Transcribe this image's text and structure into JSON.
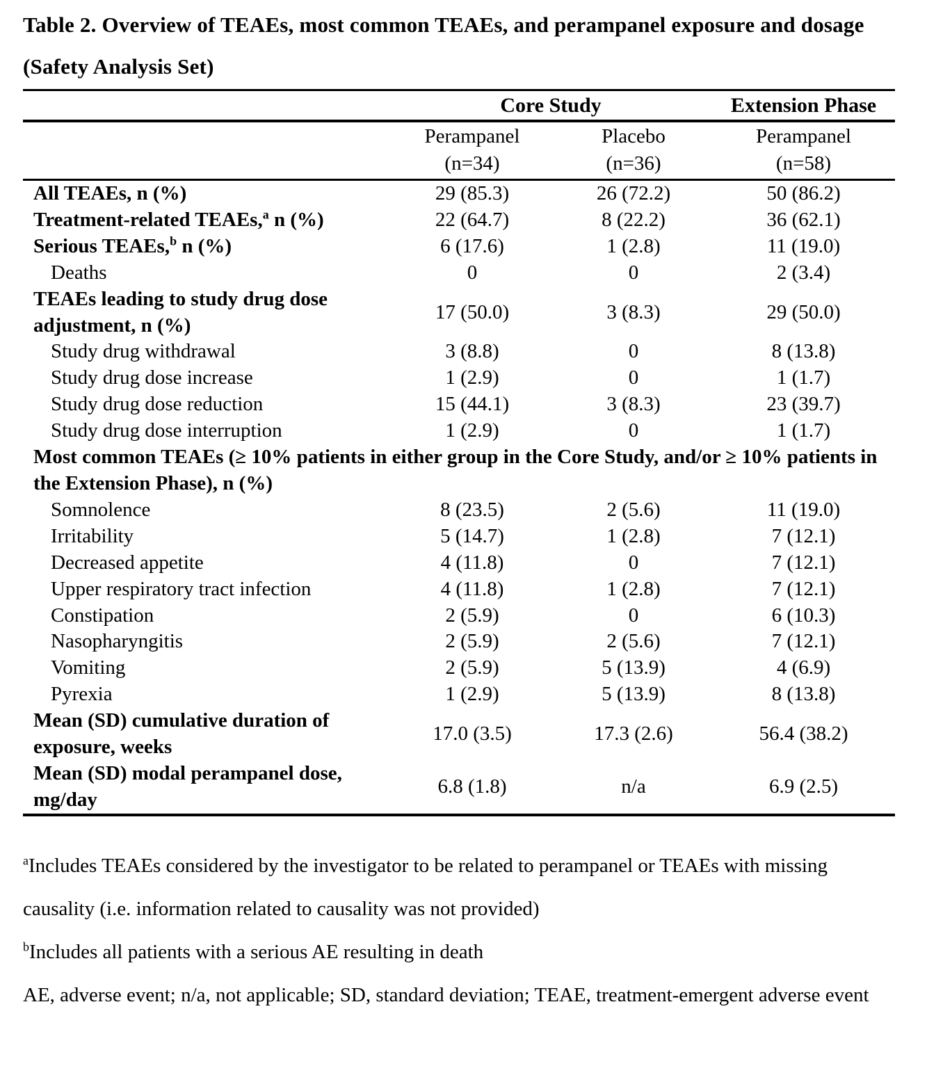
{
  "title": "Table 2. Overview of TEAEs, most common TEAEs, and perampanel exposure and dosage (Safety Analysis Set)",
  "table": {
    "group_headers": {
      "core": "Core Study",
      "extension": "Extension Phase"
    },
    "column_headers": [
      {
        "name": "Perampanel",
        "n": "(n=34)"
      },
      {
        "name": "Placebo",
        "n": "(n=36)"
      },
      {
        "name": "Perampanel",
        "n": "(n=58)"
      }
    ],
    "rows": [
      {
        "label": "All TEAEs, n (%)",
        "values": [
          "29 (85.3)",
          "26 (72.2)",
          "50 (86.2)"
        ]
      },
      {
        "label": "Treatment-related TEAEs,",
        "sup": "a",
        "label_rest": " n (%)",
        "values": [
          "22 (64.7)",
          "8 (22.2)",
          "36 (62.1)"
        ]
      },
      {
        "label": "Serious TEAEs,",
        "sup": "b",
        "label_rest": " n (%)",
        "values": [
          "6 (17.6)",
          "1 (2.8)",
          "11 (19.0)"
        ]
      },
      {
        "label": "Deaths",
        "values": [
          "0",
          "0",
          "2 (3.4)"
        ]
      },
      {
        "label": "TEAEs leading to study drug dose adjustment, n (%)",
        "values": [
          "17 (50.0)",
          "3 (8.3)",
          "29 (50.0)"
        ]
      },
      {
        "label": "Study drug withdrawal",
        "values": [
          "3 (8.8)",
          "0",
          "8 (13.8)"
        ]
      },
      {
        "label": "Study drug dose increase",
        "values": [
          "1 (2.9)",
          "0",
          "1 (1.7)"
        ]
      },
      {
        "label": "Study drug dose reduction",
        "values": [
          "15 (44.1)",
          "3 (8.3)",
          "23 (39.7)"
        ]
      },
      {
        "label": "Study drug dose interruption",
        "values": [
          "1 (2.9)",
          "0",
          "1 (1.7)"
        ]
      },
      {
        "heading": "Most common TEAEs (≥ 10% patients in either group in the Core Study, and/or ≥ 10% patients in the Extension Phase), n (%)"
      },
      {
        "label": "Somnolence",
        "values": [
          "8 (23.5)",
          "2 (5.6)",
          "11 (19.0)"
        ]
      },
      {
        "label": "Irritability",
        "values": [
          "5 (14.7)",
          "1 (2.8)",
          "7 (12.1)"
        ]
      },
      {
        "label": "Decreased appetite",
        "values": [
          "4 (11.8)",
          "0",
          "7 (12.1)"
        ]
      },
      {
        "label": "Upper respiratory tract infection",
        "values": [
          "4 (11.8)",
          "1 (2.8)",
          "7 (12.1)"
        ]
      },
      {
        "label": "Constipation",
        "values": [
          "2 (5.9)",
          "0",
          "6 (10.3)"
        ]
      },
      {
        "label": "Nasopharyngitis",
        "values": [
          "2 (5.9)",
          "2 (5.6)",
          "7 (12.1)"
        ]
      },
      {
        "label": "Vomiting",
        "values": [
          "2 (5.9)",
          "5 (13.9)",
          "4 (6.9)"
        ]
      },
      {
        "label": "Pyrexia",
        "values": [
          "1 (2.9)",
          "5 (13.9)",
          "8 (13.8)"
        ]
      },
      {
        "label": "Mean (SD) cumulative duration of exposure, weeks",
        "values": [
          "17.0 (3.5)",
          "17.3 (2.6)",
          "56.4 (38.2)"
        ]
      },
      {
        "label": "Mean (SD) modal perampanel dose, mg/day",
        "values": [
          "6.8 (1.8)",
          "n/a",
          "6.9 (2.5)"
        ]
      }
    ]
  },
  "footnotes": {
    "a_marker": "a",
    "a_text": "Includes TEAEs considered by the investigator to be related to perampanel or TEAEs with missing causality (i.e. information related to causality was not provided)",
    "b_marker": "b",
    "b_text": "Includes all patients with a serious AE resulting in death",
    "abbreviations": "AE, adverse event; n/a, not applicable; SD, standard deviation; TEAE, treatment-emergent adverse event"
  }
}
